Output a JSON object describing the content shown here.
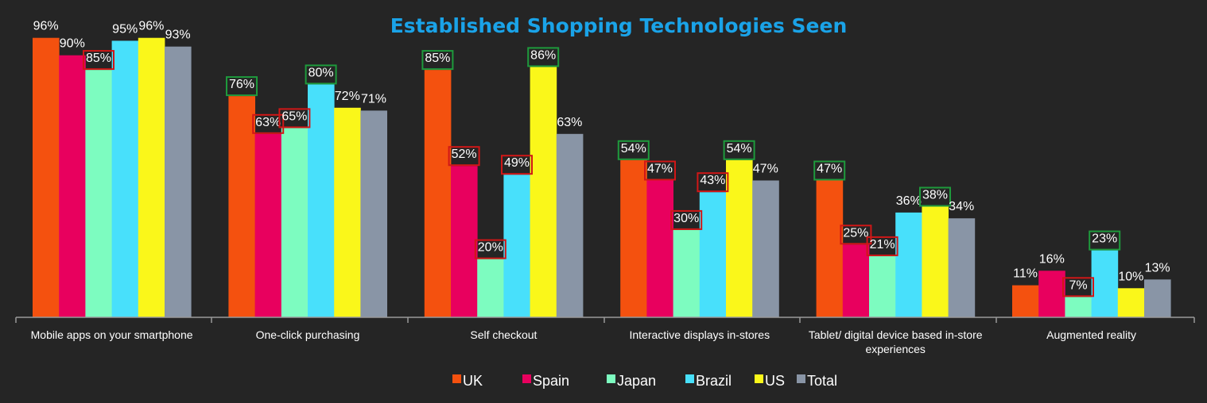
{
  "chart_data": {
    "type": "bar",
    "title": "Established Shopping Technologies Seen",
    "categories": [
      [
        "Mobile apps on your smartphone"
      ],
      [
        "One-click purchasing"
      ],
      [
        "Self checkout"
      ],
      [
        "Interactive displays in-stores"
      ],
      [
        "Tablet/ digital device based in-store",
        "experiences"
      ],
      [
        "Augmented reality"
      ]
    ],
    "series": [
      {
        "name": "UK",
        "color": "#f4510f",
        "values": [
          96,
          76,
          85,
          54,
          47,
          11
        ]
      },
      {
        "name": "Spain",
        "color": "#e8005e",
        "values": [
          90,
          63,
          52,
          47,
          25,
          16
        ]
      },
      {
        "name": "Japan",
        "color": "#7dfcc0",
        "values": [
          85,
          65,
          20,
          30,
          21,
          7
        ]
      },
      {
        "name": "Brazil",
        "color": "#48e0fb",
        "values": [
          95,
          80,
          49,
          43,
          36,
          23
        ]
      },
      {
        "name": "US",
        "color": "#faf71a",
        "values": [
          96,
          72,
          86,
          54,
          38,
          10
        ]
      },
      {
        "name": "Total",
        "color": "#8995a6",
        "values": [
          93,
          71,
          63,
          47,
          34,
          13
        ]
      }
    ],
    "data_labels": [
      [
        "96%",
        "90%",
        "85%",
        "95%",
        "96%",
        "93%"
      ],
      [
        "76%",
        "63%",
        "65%",
        "80%",
        "72%",
        "71%"
      ],
      [
        "85%",
        "52%",
        "20%",
        "49%",
        "86%",
        "63%"
      ],
      [
        "54%",
        "47%",
        "30%",
        "43%",
        "54%",
        "47%"
      ],
      [
        "47%",
        "25%",
        "21%",
        "36%",
        "38%",
        "34%"
      ],
      [
        "11%",
        "16%",
        "7%",
        "23%",
        "10%",
        "13%"
      ]
    ],
    "highlights": {
      "green": [
        [
          1,
          0
        ],
        [
          1,
          3
        ],
        [
          2,
          0
        ],
        [
          2,
          4
        ],
        [
          3,
          0
        ],
        [
          3,
          4
        ],
        [
          4,
          0
        ],
        [
          4,
          4
        ],
        [
          5,
          3
        ]
      ],
      "red": [
        [
          0,
          2
        ],
        [
          1,
          1
        ],
        [
          1,
          2
        ],
        [
          2,
          1
        ],
        [
          2,
          2
        ],
        [
          2,
          3
        ],
        [
          3,
          1
        ],
        [
          3,
          2
        ],
        [
          3,
          3
        ],
        [
          4,
          1
        ],
        [
          4,
          2
        ],
        [
          5,
          2
        ]
      ]
    },
    "highlight_colors": {
      "green": "#1e9a3c",
      "red": "#d01717"
    },
    "ylim": [
      0,
      100
    ],
    "grid": false,
    "legend_position": "bottom"
  }
}
